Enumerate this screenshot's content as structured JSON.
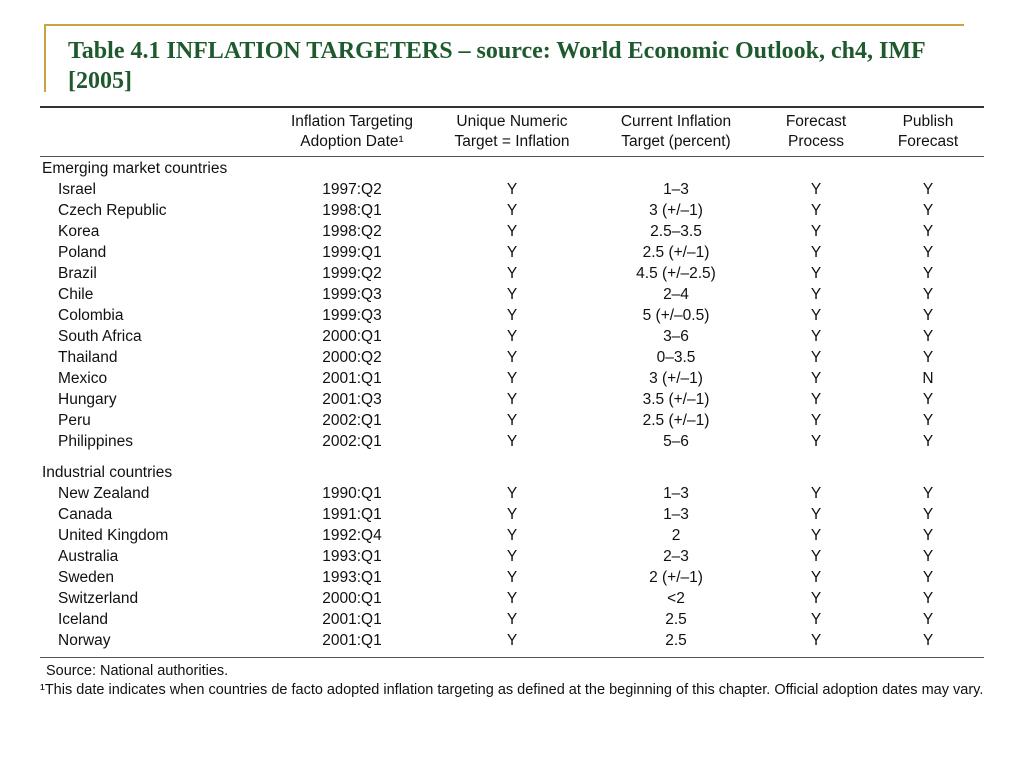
{
  "slide": {
    "title": "Table 4.1 INFLATION TARGETERS – source: World Economic Outlook, ch4, IMF [2005]"
  },
  "table": {
    "headers": [
      "",
      "Inflation Targeting\nAdoption Date¹",
      "Unique Numeric\nTarget = Inflation",
      "Current Inflation\nTarget (percent)",
      "Forecast\nProcess",
      "Publish\nForecast"
    ],
    "groups": [
      {
        "label": "Emerging market countries",
        "rows": [
          [
            "Israel",
            "1997:Q2",
            "Y",
            "1–3",
            "Y",
            "Y"
          ],
          [
            "Czech Republic",
            "1998:Q1",
            "Y",
            "3 (+/–1)",
            "Y",
            "Y"
          ],
          [
            "Korea",
            "1998:Q2",
            "Y",
            "2.5–3.5",
            "Y",
            "Y"
          ],
          [
            "Poland",
            "1999:Q1",
            "Y",
            "2.5 (+/–1)",
            "Y",
            "Y"
          ],
          [
            "Brazil",
            "1999:Q2",
            "Y",
            "4.5 (+/–2.5)",
            "Y",
            "Y"
          ],
          [
            "Chile",
            "1999:Q3",
            "Y",
            "2–4",
            "Y",
            "Y"
          ],
          [
            "Colombia",
            "1999:Q3",
            "Y",
            "5 (+/–0.5)",
            "Y",
            "Y"
          ],
          [
            "South Africa",
            "2000:Q1",
            "Y",
            "3–6",
            "Y",
            "Y"
          ],
          [
            "Thailand",
            "2000:Q2",
            "Y",
            "0–3.5",
            "Y",
            "Y"
          ],
          [
            "Mexico",
            "2001:Q1",
            "Y",
            "3 (+/–1)",
            "Y",
            "N"
          ],
          [
            "Hungary",
            "2001:Q3",
            "Y",
            "3.5 (+/–1)",
            "Y",
            "Y"
          ],
          [
            "Peru",
            "2002:Q1",
            "Y",
            "2.5 (+/–1)",
            "Y",
            "Y"
          ],
          [
            "Philippines",
            "2002:Q1",
            "Y",
            "5–6",
            "Y",
            "Y"
          ]
        ]
      },
      {
        "label": "Industrial countries",
        "rows": [
          [
            "New Zealand",
            "1990:Q1",
            "Y",
            "1–3",
            "Y",
            "Y"
          ],
          [
            "Canada",
            "1991:Q1",
            "Y",
            "1–3",
            "Y",
            "Y"
          ],
          [
            "United Kingdom",
            "1992:Q4",
            "Y",
            "2",
            "Y",
            "Y"
          ],
          [
            "Australia",
            "1993:Q1",
            "Y",
            "2–3",
            "Y",
            "Y"
          ],
          [
            "Sweden",
            "1993:Q1",
            "Y",
            "2 (+/–1)",
            "Y",
            "Y"
          ],
          [
            "Switzerland",
            "2000:Q1",
            "Y",
            "<2",
            "Y",
            "Y"
          ],
          [
            "Iceland",
            "2001:Q1",
            "Y",
            "2.5",
            "Y",
            "Y"
          ],
          [
            "Norway",
            "2001:Q1",
            "Y",
            "2.5",
            "Y",
            "Y"
          ]
        ]
      }
    ],
    "notes": {
      "source": "Source: National authorities.",
      "footnote": "¹This date indicates when countries de facto adopted inflation targeting as defined at the beginning of this chapter. Official adoption dates may vary."
    }
  },
  "colors": {
    "title": "#1f5a2e",
    "accent": "#c9a441"
  }
}
